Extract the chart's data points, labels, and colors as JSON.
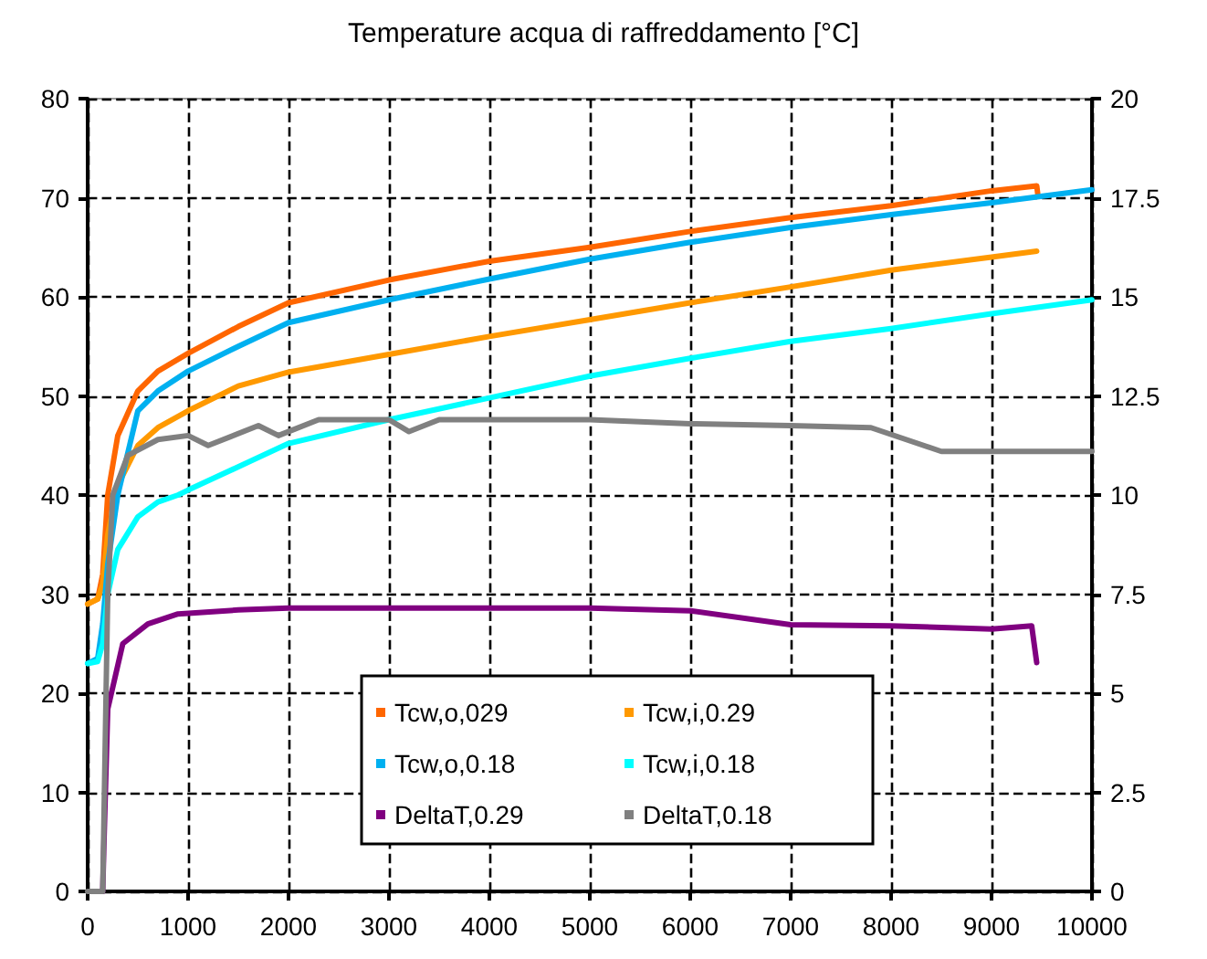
{
  "chart_data": {
    "type": "line",
    "title": "Temperature acqua di raffreddamento [°C]",
    "xlim": [
      0,
      10000
    ],
    "xticks": [
      0,
      1000,
      2000,
      3000,
      4000,
      5000,
      6000,
      7000,
      8000,
      9000,
      10000
    ],
    "ylim": [
      0,
      80
    ],
    "yticks": [
      0,
      10,
      20,
      30,
      40,
      50,
      60,
      70,
      80
    ],
    "y2lim": [
      0,
      20
    ],
    "y2ticks": [
      0,
      2.5,
      5,
      7.5,
      10,
      12.5,
      15,
      17.5,
      20
    ],
    "grid": true,
    "legend": "bottom",
    "marker": "none",
    "line_style": "solid",
    "series": [
      {
        "name": "Tcw,o,029",
        "color": "#ff6600",
        "x": [
          0,
          100,
          150,
          200,
          300,
          500,
          700,
          1000,
          1500,
          2000,
          3000,
          4000,
          5000,
          6000,
          7000,
          8000,
          9000,
          9450,
          9460
        ],
        "values": [
          29,
          29.5,
          32,
          40,
          46,
          50.5,
          52.5,
          54.3,
          57,
          59.4,
          61.7,
          63.6,
          65,
          66.6,
          68,
          69.2,
          70.7,
          71.2,
          70.4
        ]
      },
      {
        "name": "Tcw,i,0.29",
        "color": "#ff9900",
        "x": [
          0,
          100,
          150,
          200,
          300,
          500,
          700,
          1000,
          1500,
          2000,
          3000,
          4000,
          5000,
          6000,
          7000,
          8000,
          9000,
          9450
        ],
        "values": [
          29,
          29.5,
          31,
          36,
          41,
          45,
          46.8,
          48.5,
          51,
          52.4,
          54.2,
          56,
          57.7,
          59.4,
          61,
          62.7,
          64,
          64.6
        ]
      },
      {
        "name": "Tcw,o,0.18",
        "color": "#00b0f0",
        "x": [
          0,
          100,
          150,
          200,
          300,
          500,
          700,
          1000,
          1500,
          2000,
          3000,
          4000,
          5000,
          6000,
          7000,
          8000,
          9000,
          10000
        ],
        "values": [
          23,
          23.5,
          27,
          33,
          40,
          48.5,
          50.5,
          52.5,
          55,
          57.4,
          59.7,
          61.8,
          63.8,
          65.5,
          67,
          68.3,
          69.5,
          70.8
        ]
      },
      {
        "name": "Tcw,i,0.18",
        "color": "#00ffff",
        "x": [
          0,
          100,
          150,
          200,
          300,
          500,
          700,
          900,
          1000,
          2000,
          3000,
          4000,
          5000,
          6000,
          7000,
          8000,
          9000,
          10000
        ],
        "values": [
          23,
          23.2,
          25,
          30,
          34.5,
          37.8,
          39.3,
          40,
          40.5,
          45.2,
          47.6,
          49.8,
          52,
          53.8,
          55.5,
          56.8,
          58.3,
          59.7
        ]
      },
      {
        "name": "DeltaT,0.29",
        "color": "#800080",
        "axis": "y2",
        "x": [
          150,
          160,
          200,
          350,
          600,
          900,
          1500,
          2000,
          5000,
          6000,
          7000,
          8000,
          9000,
          9400,
          9450
        ],
        "values": [
          0,
          1,
          4.6,
          6.25,
          6.75,
          7,
          7.1,
          7.15,
          7.15,
          7.08,
          6.73,
          6.7,
          6.62,
          6.7,
          5.77
        ]
      },
      {
        "name": "DeltaT,0.18",
        "color": "#808080",
        "axis": "y2",
        "x": [
          0,
          150,
          200,
          250,
          400,
          700,
          1000,
          1200,
          1700,
          1900,
          2300,
          3000,
          3200,
          3500,
          5000,
          6000,
          7000,
          7800,
          8500,
          9000,
          10000
        ],
        "values": [
          0,
          0,
          7.5,
          10,
          11,
          11.4,
          11.5,
          11.25,
          11.75,
          11.5,
          11.9,
          11.9,
          11.6,
          11.9,
          11.9,
          11.8,
          11.75,
          11.7,
          11.1,
          11.1,
          11.1
        ]
      }
    ]
  }
}
